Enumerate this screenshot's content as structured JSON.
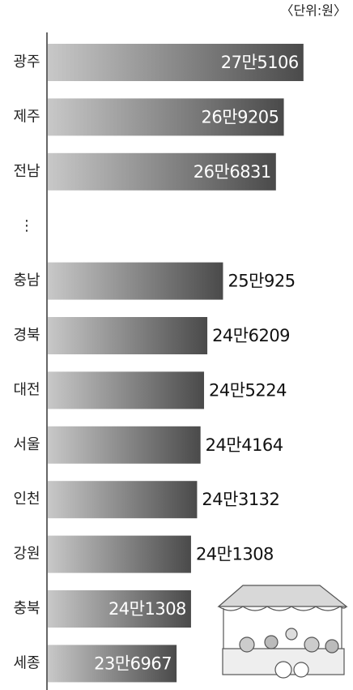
{
  "chart_data": {
    "type": "bar",
    "orientation": "horizontal",
    "unit": "〈단위:원〉",
    "categories": [
      "광주",
      "제주",
      "전남",
      "⋮",
      "충남",
      "경북",
      "대전",
      "서울",
      "인천",
      "강원",
      "충북",
      "세종"
    ],
    "values": [
      275106,
      269205,
      266831,
      null,
      250925,
      246209,
      245224,
      244164,
      243132,
      241308,
      241308,
      236967
    ],
    "value_labels": [
      "27만5106",
      "26만9205",
      "26만6831",
      null,
      "25만925",
      "24만6209",
      "24만5224",
      "24만4164",
      "24만3132",
      "24만1308",
      "24만1308",
      "23만6967"
    ],
    "xlim": [
      198000,
      290000
    ],
    "colors": [
      "#c8c8c8",
      "#4a4a4a"
    ]
  }
}
